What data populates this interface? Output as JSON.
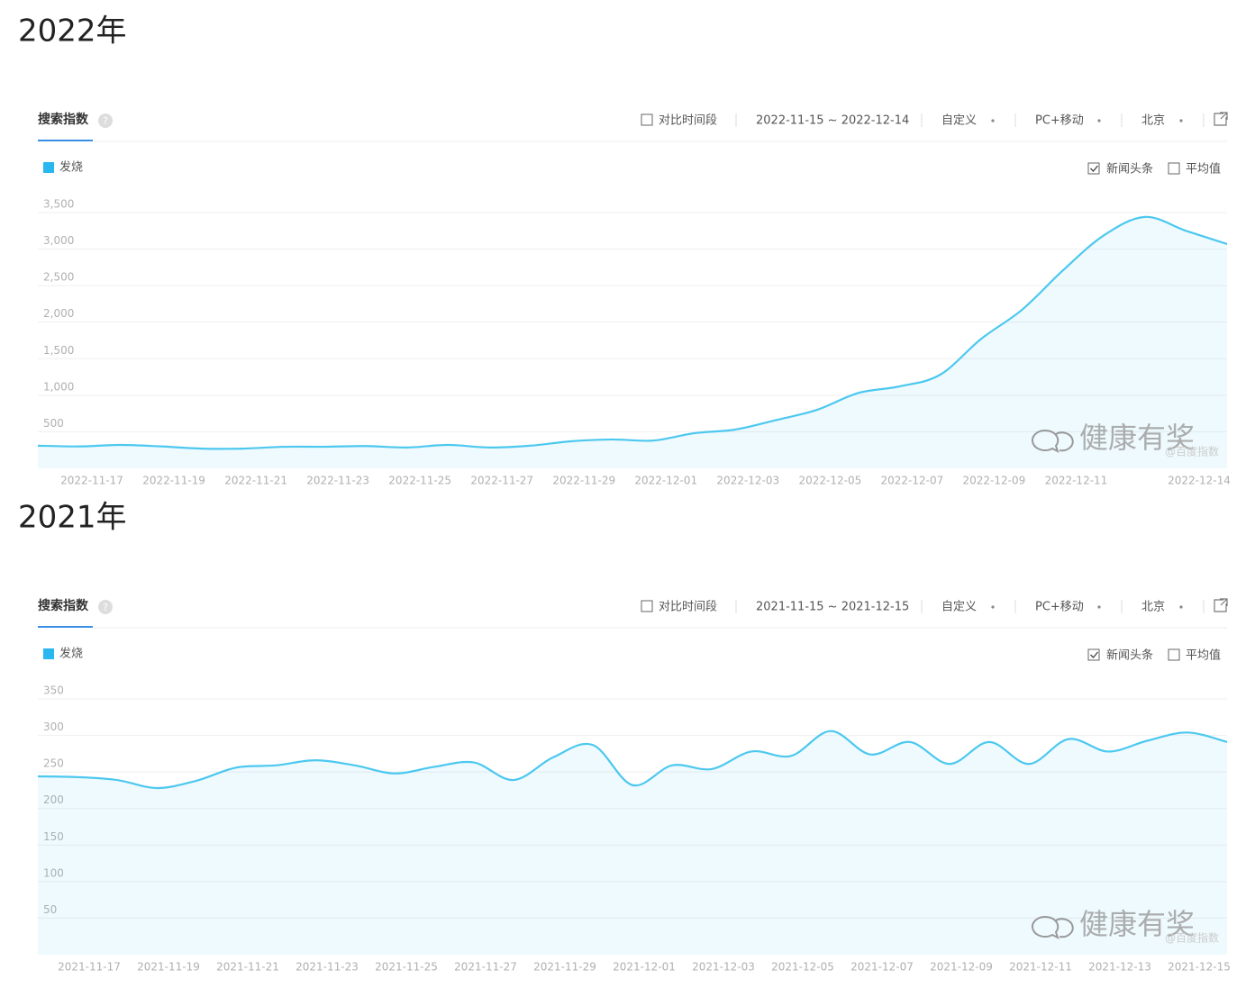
{
  "chart_data": [
    {
      "type": "area",
      "heading": "2022年",
      "tab": "搜索指数",
      "compare": "对比时间段",
      "date_range": "2022-11-15 ~ 2022-12-14",
      "mode": "自定义",
      "device": "PC+移动",
      "region": "北京",
      "news_toggle": "新闻头条",
      "avg_toggle": "平均值",
      "watermark": "健康有奖",
      "source": "@百度指数",
      "categories": [
        null,
        null,
        "2022-11-17",
        null,
        "2022-11-19",
        null,
        "2022-11-21",
        null,
        "2022-11-23",
        null,
        "2022-11-25",
        null,
        "2022-11-27",
        null,
        "2022-11-29",
        null,
        "2022-12-01",
        null,
        "2022-12-03",
        null,
        "2022-12-05",
        null,
        "2022-12-07",
        null,
        "2022-12-09",
        null,
        "2022-12-11",
        null,
        null,
        "2022-12-14"
      ],
      "series": [
        {
          "name": "发烧",
          "color": "#4cc8ef",
          "values": [
            310,
            300,
            320,
            300,
            270,
            270,
            295,
            295,
            305,
            285,
            320,
            285,
            310,
            370,
            395,
            380,
            480,
            530,
            660,
            800,
            1030,
            1120,
            1280,
            1770,
            2170,
            2710,
            3190,
            3440,
            3250,
            3070
          ]
        }
      ],
      "ylim": [
        0,
        3500
      ],
      "yticks": [
        {
          "value": 500,
          "label": "500"
        },
        {
          "value": 1000,
          "label": "1,000"
        },
        {
          "value": 1500,
          "label": "1,500"
        },
        {
          "value": 2000,
          "label": "2,000"
        },
        {
          "value": 2500,
          "label": "2,500"
        },
        {
          "value": 3000,
          "label": "3,000"
        },
        {
          "value": 3500,
          "label": "3,500"
        }
      ],
      "grid": true
    },
    {
      "type": "area",
      "heading": "2021年",
      "tab": "搜索指数",
      "compare": "对比时间段",
      "date_range": "2021-11-15 ~ 2021-12-15",
      "mode": "自定义",
      "device": "PC+移动",
      "region": "北京",
      "news_toggle": "新闻头条",
      "avg_toggle": "平均值",
      "watermark": "健康有奖",
      "source": "@百度指数",
      "categories": [
        null,
        null,
        "2021-11-17",
        null,
        "2021-11-19",
        null,
        "2021-11-21",
        null,
        "2021-11-23",
        null,
        "2021-11-25",
        null,
        "2021-11-27",
        null,
        "2021-11-29",
        null,
        "2021-12-01",
        null,
        "2021-12-03",
        null,
        "2021-12-05",
        null,
        "2021-12-07",
        null,
        "2021-12-09",
        null,
        "2021-12-11",
        null,
        "2021-12-13",
        null,
        "2021-12-15"
      ],
      "series": [
        {
          "name": "发烧",
          "color": "#4cc8ef",
          "values": [
            244,
            243,
            239,
            228,
            238,
            256,
            259,
            266,
            259,
            248,
            257,
            263,
            239,
            270,
            287,
            232,
            259,
            254,
            278,
            272,
            306,
            274,
            291,
            261,
            291,
            261,
            295,
            278,
            293,
            304,
            291
          ]
        }
      ],
      "ylim": [
        0,
        350
      ],
      "yticks": [
        50,
        100,
        150,
        200,
        250,
        300,
        350
      ],
      "grid": true
    }
  ]
}
